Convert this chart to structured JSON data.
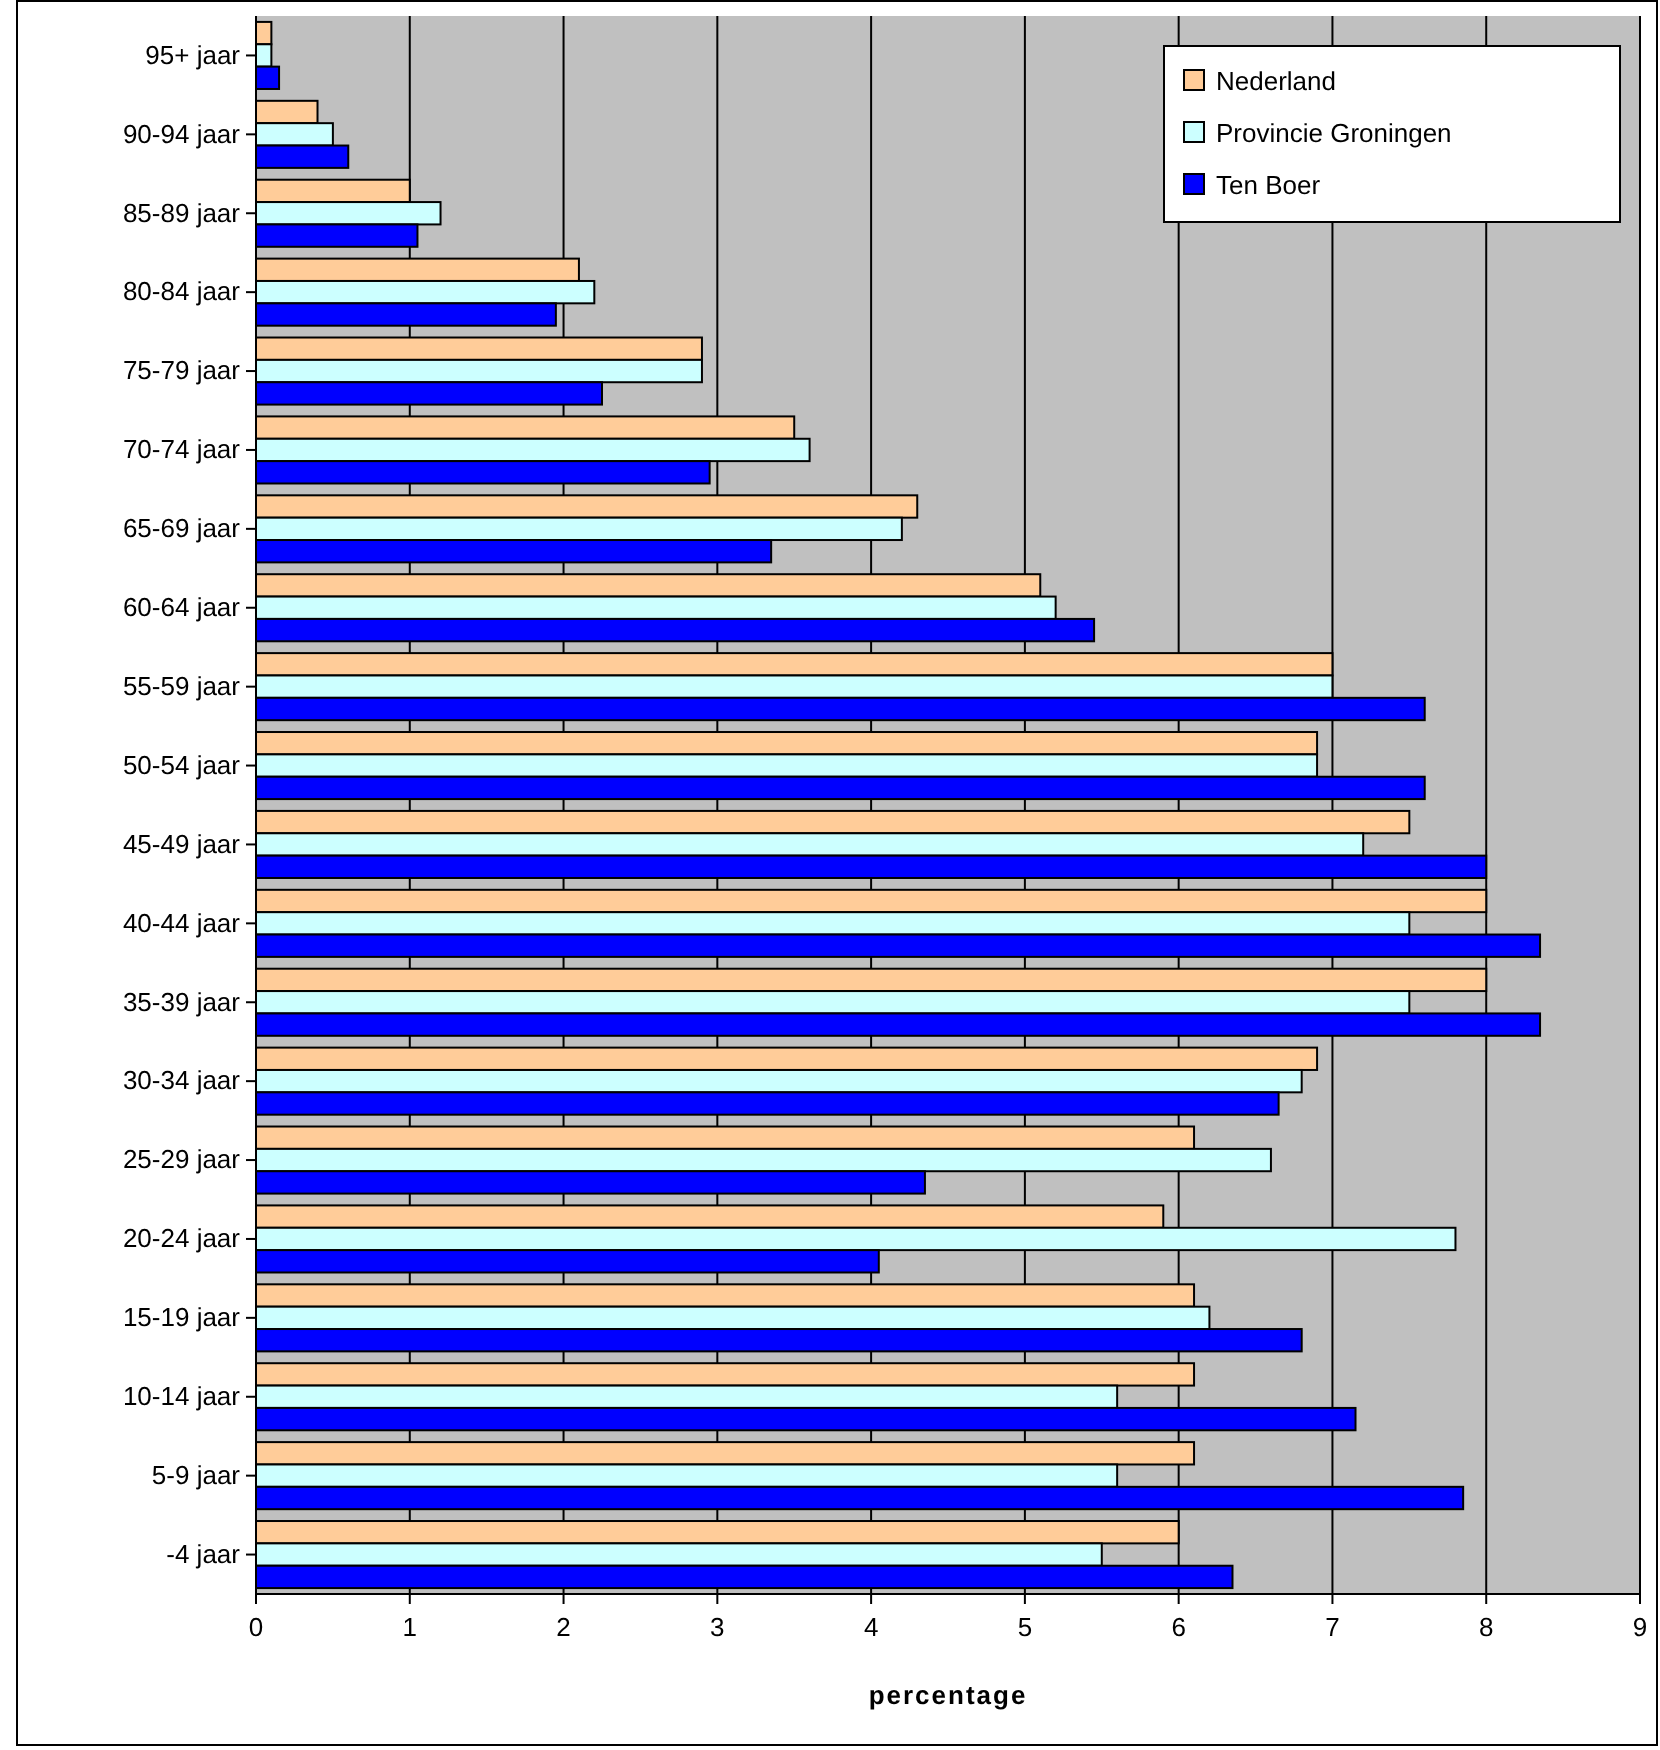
{
  "chart_data": {
    "type": "bar",
    "orientation": "horizontal",
    "xlabel": "percentage",
    "categories": [
      "95+ jaar",
      "90-94 jaar",
      "85-89 jaar",
      "80-84 jaar",
      "75-79 jaar",
      "70-74 jaar",
      "65-69 jaar",
      "60-64 jaar",
      "55-59 jaar",
      "50-54 jaar",
      "45-49 jaar",
      "40-44 jaar",
      "35-39 jaar",
      "30-34 jaar",
      "25-29 jaar",
      "20-24 jaar",
      "15-19 jaar",
      "10-14 jaar",
      "5-9 jaar",
      "-4 jaar"
    ],
    "series": [
      {
        "name": "Nederland",
        "color": "#ffcc99",
        "values": [
          0.1,
          0.4,
          1.0,
          2.1,
          2.9,
          3.5,
          4.3,
          5.1,
          7.0,
          6.9,
          7.5,
          8.0,
          8.0,
          6.9,
          6.1,
          5.9,
          6.1,
          6.1,
          6.1,
          6.0
        ]
      },
      {
        "name": "Provincie Groningen",
        "color": "#ccffff",
        "values": [
          0.1,
          0.5,
          1.2,
          2.2,
          2.9,
          3.6,
          4.2,
          5.2,
          7.0,
          6.9,
          7.2,
          7.5,
          7.5,
          6.8,
          6.6,
          7.8,
          6.2,
          5.6,
          5.6,
          5.5
        ]
      },
      {
        "name": "Ten Boer",
        "color": "#0000ff",
        "values": [
          0.15,
          0.6,
          1.05,
          1.95,
          2.25,
          2.95,
          3.35,
          5.45,
          7.6,
          7.6,
          8.0,
          8.35,
          8.35,
          6.65,
          4.35,
          4.05,
          6.8,
          7.15,
          7.85,
          6.35
        ]
      }
    ],
    "xlim": [
      0,
      9
    ],
    "xticks": [
      0,
      1,
      2,
      3,
      4,
      5,
      6,
      7,
      8,
      9
    ],
    "grid": "x",
    "legend": "top right"
  }
}
